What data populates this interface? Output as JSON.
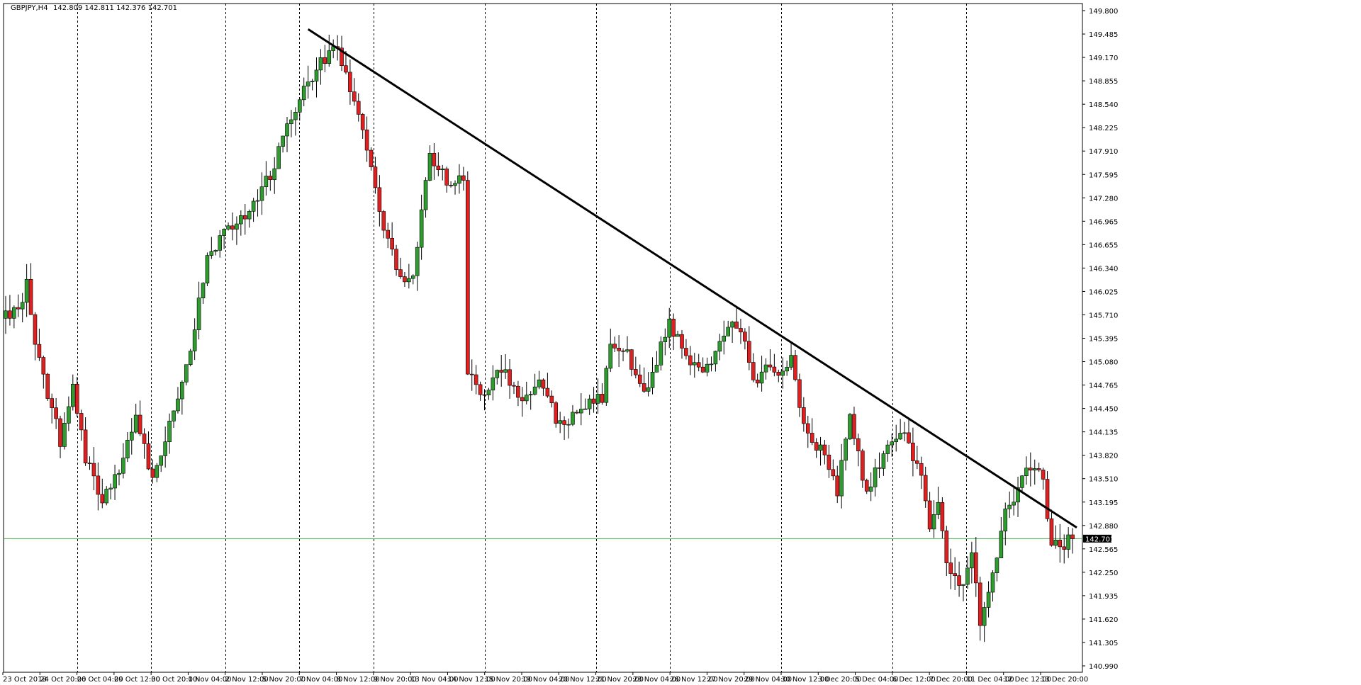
{
  "header": {
    "symbol": "GBPJPY,H4",
    "ohlc": "142.809 142.811 142.376 142.701"
  },
  "chart_data": {
    "type": "candlestick",
    "symbol": "GBPJPY",
    "timeframe": "H4",
    "ylim": [
      140.99,
      149.8
    ],
    "y_ticks": [
      "149.800",
      "149.485",
      "149.170",
      "148.855",
      "148.540",
      "148.225",
      "147.910",
      "147.595",
      "147.280",
      "146.965",
      "146.655",
      "146.340",
      "146.025",
      "145.710",
      "145.395",
      "145.080",
      "144.765",
      "144.450",
      "144.135",
      "143.820",
      "143.510",
      "143.195",
      "142.880",
      "142.565",
      "142.250",
      "141.935",
      "141.620",
      "141.305",
      "140.990"
    ],
    "x_labels": [
      "23 Oct 2018",
      "24 Oct 20:00",
      "26 Oct 04:00",
      "29 Oct 12:00",
      "30 Oct 20:00",
      "1 Nov 04:00",
      "2 Nov 12:00",
      "5 Nov 20:00",
      "7 Nov 04:00",
      "8 Nov 12:00",
      "9 Nov 20:00",
      "13 Nov 04:00",
      "14 Nov 12:00",
      "15 Nov 20:00",
      "19 Nov 04:00",
      "20 Nov 12:00",
      "21 Nov 20:00",
      "23 Nov 04:00",
      "26 Nov 12:00",
      "27 Nov 20:00",
      "29 Nov 04:00",
      "30 Nov 12:00",
      "3 Dec 20:00",
      "5 Dec 04:00",
      "6 Dec 12:00",
      "7 Dec 20:00",
      "11 Dec 04:00",
      "12 Dec 12:00",
      "13 Dec 20:00"
    ],
    "grid_label_indices": [
      2,
      4,
      6,
      8,
      10,
      13,
      16,
      18,
      21,
      24,
      26
    ],
    "current_price": "142.701",
    "current_price_value": 142.701,
    "colors": {
      "bull": "#2e9c2e",
      "bear": "#e02020",
      "wick": "#000000",
      "price_line": "#4caf50",
      "grid": "#000000"
    },
    "trendline": {
      "start": {
        "bar": 72,
        "price": 149.55
      },
      "end": {
        "bar": 255,
        "price": 142.85
      }
    },
    "anchors": [
      [
        0,
        145.7
      ],
      [
        4,
        145.9
      ],
      [
        5,
        146.25
      ],
      [
        7,
        145.3
      ],
      [
        11,
        144.45
      ],
      [
        13,
        144.0
      ],
      [
        16,
        144.7
      ],
      [
        19,
        143.8
      ],
      [
        23,
        143.2
      ],
      [
        27,
        143.6
      ],
      [
        31,
        144.3
      ],
      [
        35,
        143.5
      ],
      [
        39,
        144.2
      ],
      [
        44,
        145.2
      ],
      [
        48,
        146.5
      ],
      [
        52,
        146.8
      ],
      [
        57,
        147.0
      ],
      [
        63,
        147.6
      ],
      [
        69,
        148.5
      ],
      [
        75,
        149.1
      ],
      [
        79,
        149.3
      ],
      [
        82,
        148.7
      ],
      [
        86,
        148.0
      ],
      [
        90,
        146.9
      ],
      [
        94,
        146.2
      ],
      [
        97,
        146.3
      ],
      [
        101,
        147.9
      ],
      [
        105,
        147.5
      ],
      [
        109,
        147.6
      ],
      [
        110,
        144.95
      ],
      [
        113,
        144.6
      ],
      [
        118,
        145.0
      ],
      [
        122,
        144.6
      ],
      [
        127,
        144.8
      ],
      [
        132,
        144.2
      ],
      [
        136,
        144.4
      ],
      [
        142,
        144.6
      ],
      [
        144,
        145.4
      ],
      [
        148,
        145.2
      ],
      [
        152,
        144.6
      ],
      [
        155,
        145.1
      ],
      [
        158,
        145.6
      ],
      [
        162,
        145.2
      ],
      [
        166,
        144.9
      ],
      [
        170,
        145.3
      ],
      [
        173,
        145.7
      ],
      [
        176,
        145.4
      ],
      [
        178,
        144.8
      ],
      [
        181,
        145.0
      ],
      [
        184,
        144.9
      ],
      [
        187,
        145.1
      ],
      [
        190,
        144.2
      ],
      [
        195,
        143.8
      ],
      [
        198,
        143.3
      ],
      [
        201,
        144.4
      ],
      [
        205,
        143.3
      ],
      [
        210,
        144.0
      ],
      [
        214,
        144.1
      ],
      [
        218,
        143.5
      ],
      [
        220,
        142.9
      ],
      [
        222,
        143.2
      ],
      [
        224,
        142.3
      ],
      [
        228,
        142.1
      ],
      [
        230,
        142.6
      ],
      [
        232,
        141.6
      ],
      [
        235,
        142.2
      ],
      [
        238,
        143.1
      ],
      [
        241,
        143.3
      ],
      [
        243,
        143.7
      ],
      [
        247,
        143.5
      ],
      [
        249,
        142.6
      ],
      [
        251,
        142.6
      ],
      [
        254,
        142.7
      ]
    ]
  }
}
